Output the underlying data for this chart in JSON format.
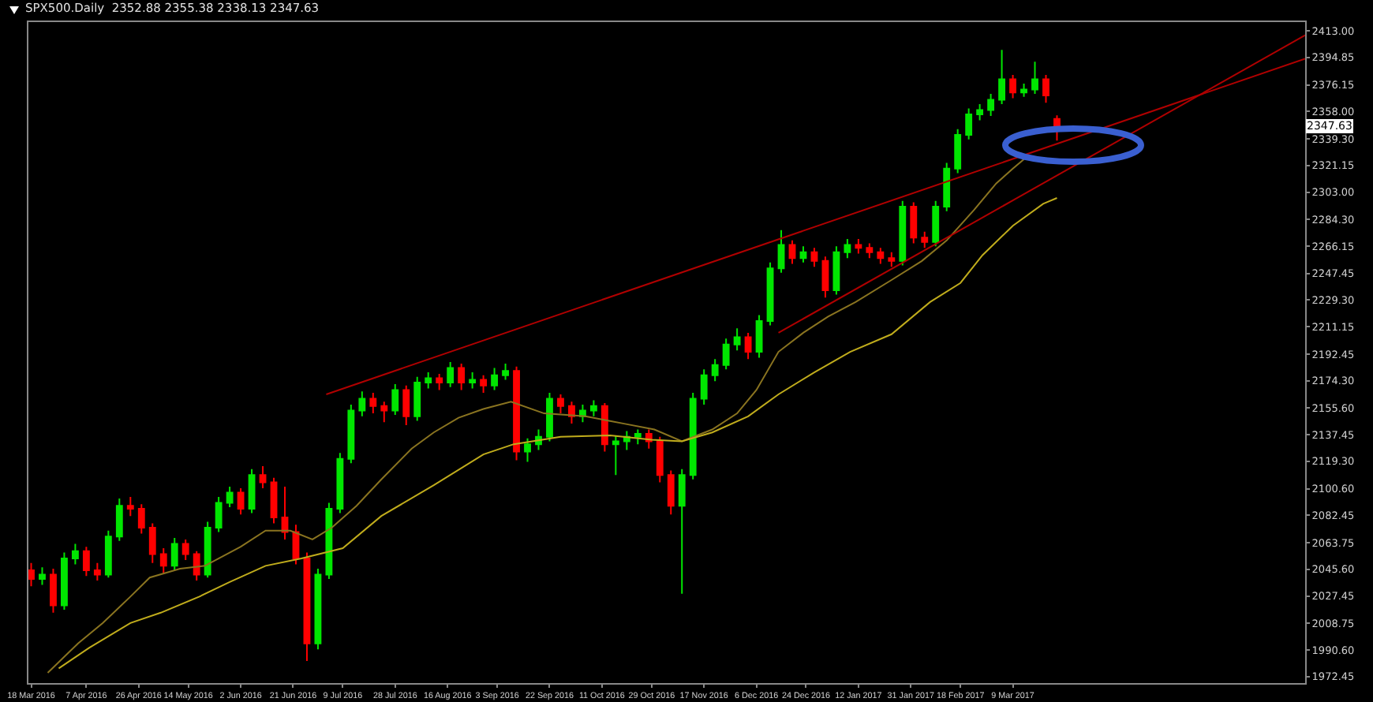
{
  "chart_data": {
    "type": "candlestick",
    "title": "SPX500.Daily  2352.88 2355.38 2338.13 2347.63",
    "x": [
      "2016-03-18",
      "2016-03-22",
      "2016-03-26",
      "2016-03-30",
      "2016-04-03",
      "2016-04-07",
      "2016-04-11",
      "2016-04-15",
      "2016-04-19",
      "2016-04-23",
      "2016-04-27",
      "2016-05-01",
      "2016-05-05",
      "2016-05-09",
      "2016-05-13",
      "2016-05-17",
      "2016-05-21",
      "2016-05-25",
      "2016-05-29",
      "2016-06-02",
      "2016-06-06",
      "2016-06-10",
      "2016-06-14",
      "2016-06-18",
      "2016-06-22",
      "2016-06-26",
      "2016-06-30",
      "2016-07-04",
      "2016-07-08",
      "2016-07-12",
      "2016-07-16",
      "2016-07-20",
      "2016-07-24",
      "2016-07-28",
      "2016-08-01",
      "2016-08-05",
      "2016-08-09",
      "2016-08-13",
      "2016-08-17",
      "2016-08-21",
      "2016-08-25",
      "2016-08-29",
      "2016-09-02",
      "2016-09-06",
      "2016-09-10",
      "2016-09-14",
      "2016-09-18",
      "2016-09-22",
      "2016-09-26",
      "2016-09-30",
      "2016-10-04",
      "2016-10-08",
      "2016-10-12",
      "2016-10-16",
      "2016-10-20",
      "2016-10-24",
      "2016-10-28",
      "2016-11-01",
      "2016-11-05",
      "2016-11-09",
      "2016-11-13",
      "2016-11-17",
      "2016-11-21",
      "2016-11-25",
      "2016-11-29",
      "2016-12-03",
      "2016-12-07",
      "2016-12-11",
      "2016-12-15",
      "2016-12-19",
      "2016-12-23",
      "2016-12-27",
      "2016-12-31",
      "2017-01-04",
      "2017-01-08",
      "2017-01-12",
      "2017-01-16",
      "2017-01-20",
      "2017-01-24",
      "2017-01-28",
      "2017-02-01",
      "2017-02-05",
      "2017-02-09",
      "2017-02-13",
      "2017-02-17",
      "2017-02-21",
      "2017-02-25",
      "2017-03-01",
      "2017-03-05",
      "2017-03-09",
      "2017-03-13",
      "2017-03-17",
      "2017-03-21",
      "2017-03-25"
    ],
    "ohlc": [
      [
        2045,
        2050,
        2034,
        2039
      ],
      [
        2039,
        2047,
        2035,
        2042
      ],
      [
        2042,
        2046,
        2016,
        2021
      ],
      [
        2021,
        2057,
        2018,
        2053
      ],
      [
        2053,
        2063,
        2049,
        2058
      ],
      [
        2058,
        2061,
        2041,
        2045
      ],
      [
        2045,
        2050,
        2038,
        2042
      ],
      [
        2042,
        2072,
        2040,
        2068
      ],
      [
        2068,
        2094,
        2065,
        2089
      ],
      [
        2089,
        2095,
        2082,
        2087
      ],
      [
        2087,
        2090,
        2070,
        2074
      ],
      [
        2074,
        2077,
        2050,
        2056
      ],
      [
        2056,
        2060,
        2043,
        2048
      ],
      [
        2048,
        2067,
        2045,
        2063
      ],
      [
        2063,
        2066,
        2052,
        2056
      ],
      [
        2056,
        2058,
        2038,
        2042
      ],
      [
        2042,
        2078,
        2040,
        2074
      ],
      [
        2074,
        2095,
        2071,
        2091
      ],
      [
        2091,
        2102,
        2088,
        2098
      ],
      [
        2098,
        2101,
        2083,
        2087
      ],
      [
        2087,
        2114,
        2084,
        2110
      ],
      [
        2110,
        2116,
        2101,
        2105
      ],
      [
        2105,
        2108,
        2077,
        2081
      ],
      [
        2081,
        2102,
        2066,
        2071
      ],
      [
        2071,
        2076,
        2049,
        2053
      ],
      [
        2053,
        2057,
        1983,
        1995
      ],
      [
        1995,
        2046,
        1991,
        2042
      ],
      [
        2042,
        2091,
        2039,
        2087
      ],
      [
        2087,
        2125,
        2084,
        2121
      ],
      [
        2121,
        2158,
        2118,
        2154
      ],
      [
        2154,
        2167,
        2150,
        2162
      ],
      [
        2162,
        2166,
        2152,
        2157
      ],
      [
        2157,
        2160,
        2146,
        2154
      ],
      [
        2154,
        2172,
        2151,
        2168
      ],
      [
        2168,
        2171,
        2144,
        2150
      ],
      [
        2150,
        2177,
        2147,
        2173
      ],
      [
        2173,
        2180,
        2169,
        2176
      ],
      [
        2176,
        2179,
        2168,
        2173
      ],
      [
        2173,
        2187,
        2170,
        2183
      ],
      [
        2183,
        2186,
        2168,
        2173
      ],
      [
        2173,
        2180,
        2169,
        2175
      ],
      [
        2175,
        2178,
        2166,
        2171
      ],
      [
        2171,
        2183,
        2168,
        2178
      ],
      [
        2178,
        2186,
        2175,
        2181
      ],
      [
        2181,
        2184,
        2120,
        2126
      ],
      [
        2126,
        2135,
        2119,
        2131
      ],
      [
        2131,
        2141,
        2127,
        2136
      ],
      [
        2136,
        2166,
        2133,
        2162
      ],
      [
        2162,
        2165,
        2152,
        2157
      ],
      [
        2157,
        2160,
        2145,
        2150
      ],
      [
        2150,
        2158,
        2146,
        2154
      ],
      [
        2154,
        2161,
        2150,
        2157
      ],
      [
        2157,
        2159,
        2126,
        2131
      ],
      [
        2131,
        2137,
        2110,
        2133
      ],
      [
        2133,
        2140,
        2127,
        2136
      ],
      [
        2136,
        2141,
        2131,
        2138
      ],
      [
        2138,
        2141,
        2128,
        2133
      ],
      [
        2133,
        2136,
        2105,
        2110
      ],
      [
        2110,
        2113,
        2083,
        2089
      ],
      [
        2089,
        2114,
        2029,
        2110
      ],
      [
        2110,
        2166,
        2107,
        2162
      ],
      [
        2162,
        2182,
        2158,
        2178
      ],
      [
        2178,
        2189,
        2174,
        2185
      ],
      [
        2185,
        2203,
        2182,
        2199
      ],
      [
        2199,
        2210,
        2195,
        2204
      ],
      [
        2204,
        2207,
        2189,
        2194
      ],
      [
        2194,
        2219,
        2190,
        2215
      ],
      [
        2215,
        2255,
        2212,
        2251
      ],
      [
        2251,
        2277,
        2248,
        2267
      ],
      [
        2267,
        2270,
        2254,
        2258
      ],
      [
        2258,
        2266,
        2255,
        2262
      ],
      [
        2262,
        2265,
        2252,
        2256
      ],
      [
        2256,
        2259,
        2231,
        2236
      ],
      [
        2236,
        2266,
        2233,
        2262
      ],
      [
        2262,
        2271,
        2258,
        2267
      ],
      [
        2267,
        2271,
        2261,
        2265
      ],
      [
        2265,
        2268,
        2258,
        2262
      ],
      [
        2262,
        2265,
        2254,
        2258
      ],
      [
        2258,
        2262,
        2252,
        2256
      ],
      [
        2256,
        2297,
        2253,
        2293
      ],
      [
        2293,
        2296,
        2268,
        2272
      ],
      [
        2272,
        2276,
        2265,
        2269
      ],
      [
        2269,
        2297,
        2266,
        2293
      ],
      [
        2293,
        2323,
        2290,
        2319
      ],
      [
        2319,
        2346,
        2316,
        2342
      ],
      [
        2342,
        2360,
        2339,
        2356
      ],
      [
        2356,
        2363,
        2352,
        2359
      ],
      [
        2359,
        2370,
        2355,
        2366
      ],
      [
        2366,
        2400,
        2363,
        2380
      ],
      [
        2380,
        2383,
        2367,
        2371
      ],
      [
        2371,
        2377,
        2368,
        2373
      ],
      [
        2373,
        2392,
        2370,
        2380
      ],
      [
        2380,
        2383,
        2364,
        2369
      ],
      [
        2352.88,
        2355.38,
        2338.13,
        2347.63
      ]
    ],
    "colors": [
      "#ff0000",
      "#00e600",
      "#ff0000",
      "#00e600",
      "#00e600",
      "#ff0000",
      "#ff0000",
      "#00e600",
      "#00e600",
      "#ff0000",
      "#ff0000",
      "#ff0000",
      "#ff0000",
      "#00e600",
      "#ff0000",
      "#ff0000",
      "#00e600",
      "#00e600",
      "#00e600",
      "#ff0000",
      "#00e600",
      "#ff0000",
      "#ff0000",
      "#ff0000",
      "#ff0000",
      "#ff0000",
      "#00e600",
      "#00e600",
      "#00e600",
      "#00e600",
      "#00e600",
      "#ff0000",
      "#ff0000",
      "#00e600",
      "#ff0000",
      "#00e600",
      "#00e600",
      "#ff0000",
      "#00e600",
      "#ff0000",
      "#00e600",
      "#ff0000",
      "#00e600",
      "#00e600",
      "#ff0000",
      "#00e600",
      "#00e600",
      "#00e600",
      "#ff0000",
      "#ff0000",
      "#00e600",
      "#00e600",
      "#ff0000",
      "#00e600",
      "#00e600",
      "#00e600",
      "#ff0000",
      "#ff0000",
      "#ff0000",
      "#00e600",
      "#00e600",
      "#00e600",
      "#00e600",
      "#00e600",
      "#00e600",
      "#ff0000",
      "#00e600",
      "#00e600",
      "#00e600",
      "#ff0000",
      "#00e600",
      "#ff0000",
      "#ff0000",
      "#00e600",
      "#00e600",
      "#ff0000",
      "#ff0000",
      "#ff0000",
      "#ff0000",
      "#00e600",
      "#ff0000",
      "#ff0000",
      "#00e600",
      "#00e600",
      "#00e600",
      "#00e600",
      "#00e600",
      "#00e600",
      "#00e600",
      "#ff0000",
      "#00e600",
      "#00e600",
      "#ff0000",
      "#ff0000"
    ],
    "series": [
      {
        "type": "line",
        "color": "#8a7420",
        "x": [
          "2016-03-24",
          "2016-04-04",
          "2016-04-13",
          "2016-04-23",
          "2016-04-30",
          "2016-05-11",
          "2016-05-20",
          "2016-06-02",
          "2016-06-11",
          "2016-06-20",
          "2016-06-28",
          "2016-07-05",
          "2016-07-14",
          "2016-07-23",
          "2016-08-03",
          "2016-08-11",
          "2016-08-20",
          "2016-08-29",
          "2016-09-08",
          "2016-09-20",
          "2016-10-05",
          "2016-10-19",
          "2016-10-30",
          "2016-11-09",
          "2016-11-20",
          "2016-11-29",
          "2016-12-06",
          "2016-12-14",
          "2016-12-23",
          "2017-01-01",
          "2017-01-11",
          "2017-01-24",
          "2017-02-04",
          "2017-02-13",
          "2017-02-23",
          "2017-03-03",
          "2017-03-09",
          "2017-03-14"
        ],
        "values": [
          1975,
          1995,
          2009,
          2027,
          2040,
          2046,
          2048,
          2061,
          2072,
          2072,
          2066,
          2074,
          2089,
          2107,
          2128,
          2139,
          2149,
          2155,
          2160,
          2152,
          2150,
          2145,
          2141,
          2133,
          2141,
          2152,
          2168,
          2194,
          2207,
          2218,
          2228,
          2243,
          2256,
          2270,
          2291,
          2309,
          2319,
          2327
        ]
      },
      {
        "type": "line",
        "color": "#c0ac1c",
        "x": [
          "2016-03-28",
          "2016-04-08",
          "2016-04-23",
          "2016-05-04",
          "2016-05-18",
          "2016-05-29",
          "2016-06-11",
          "2016-06-24",
          "2016-07-09",
          "2016-07-23",
          "2016-08-11",
          "2016-08-29",
          "2016-09-09",
          "2016-09-26",
          "2016-10-14",
          "2016-10-29",
          "2016-11-09",
          "2016-11-20",
          "2016-12-03",
          "2016-12-14",
          "2016-12-27",
          "2017-01-09",
          "2017-01-24",
          "2017-02-07",
          "2017-02-18",
          "2017-02-26",
          "2017-03-09",
          "2017-03-20",
          "2017-03-25"
        ],
        "values": [
          1978,
          1992,
          2009,
          2016,
          2027,
          2037,
          2048,
          2053,
          2060,
          2082,
          2103,
          2124,
          2131,
          2136,
          2137,
          2134,
          2133,
          2139,
          2150,
          2165,
          2180,
          2194,
          2206,
          2228,
          2241,
          2260,
          2280,
          2295,
          2299
        ]
      },
      {
        "type": "line",
        "color": "#b00000",
        "x": [
          "2016-07-03",
          "2017-06-23"
        ],
        "values": [
          2165,
          2394
        ]
      },
      {
        "type": "line",
        "color": "#b00000",
        "x": [
          "2016-12-14",
          "2017-06-23"
        ],
        "values": [
          2207,
          2410
        ]
      }
    ],
    "annotations": [
      {
        "text": "2347.63",
        "y": 2347.63
      }
    ],
    "xlim": [
      "2016-03-17",
      "2017-06-23"
    ],
    "xticks": [
      {
        "value": "2016-03-18",
        "label": "18 Mar 2016"
      },
      {
        "value": "2016-04-07",
        "label": "7 Apr 2016"
      },
      {
        "value": "2016-04-26",
        "label": "26 Apr 2016"
      },
      {
        "value": "2016-05-14",
        "label": "14 May 2016"
      },
      {
        "value": "2016-06-02",
        "label": "2 Jun 2016"
      },
      {
        "value": "2016-06-21",
        "label": "21 Jun 2016"
      },
      {
        "value": "2016-07-09",
        "label": "9 Jul 2016"
      },
      {
        "value": "2016-07-28",
        "label": "28 Jul 2016"
      },
      {
        "value": "2016-08-16",
        "label": "16 Aug 2016"
      },
      {
        "value": "2016-09-03",
        "label": "3 Sep 2016"
      },
      {
        "value": "2016-09-22",
        "label": "22 Sep 2016"
      },
      {
        "value": "2016-10-11",
        "label": "11 Oct 2016"
      },
      {
        "value": "2016-10-29",
        "label": "29 Oct 2016"
      },
      {
        "value": "2016-11-17",
        "label": "17 Nov 2016"
      },
      {
        "value": "2016-12-06",
        "label": "6 Dec 2016"
      },
      {
        "value": "2016-12-24",
        "label": "24 Dec 2016"
      },
      {
        "value": "2017-01-12",
        "label": "12 Jan 2017"
      },
      {
        "value": "2017-01-31",
        "label": "31 Jan 2017"
      },
      {
        "value": "2017-02-18",
        "label": "18 Feb 2017"
      },
      {
        "value": "2017-03-09",
        "label": "9 Mar 2017"
      }
    ],
    "ylim": [
      1968,
      2419
    ],
    "yticks": [
      {
        "value": 1972.45,
        "label": "1972.45"
      },
      {
        "value": 1990.6,
        "label": "1990.60"
      },
      {
        "value": 2008.75,
        "label": "2008.75"
      },
      {
        "value": 2027.45,
        "label": "2027.45"
      },
      {
        "value": 2045.6,
        "label": "2045.60"
      },
      {
        "value": 2063.75,
        "label": "2063.75"
      },
      {
        "value": 2082.45,
        "label": "2082.45"
      },
      {
        "value": 2100.6,
        "label": "2100.60"
      },
      {
        "value": 2119.3,
        "label": "2119.30"
      },
      {
        "value": 2137.45,
        "label": "2137.45"
      },
      {
        "value": 2155.6,
        "label": "2155.60"
      },
      {
        "value": 2174.3,
        "label": "2174.30"
      },
      {
        "value": 2192.45,
        "label": "2192.45"
      },
      {
        "value": 2211.15,
        "label": "2211.15"
      },
      {
        "value": 2229.3,
        "label": "2229.30"
      },
      {
        "value": 2247.45,
        "label": "2247.45"
      },
      {
        "value": 2266.15,
        "label": "2266.15"
      },
      {
        "value": 2284.3,
        "label": "2284.30"
      },
      {
        "value": 2303,
        "label": "2303.00"
      },
      {
        "value": 2321.15,
        "label": "2321.15"
      },
      {
        "value": 2339.3,
        "label": "2339.30"
      },
      {
        "value": 2358,
        "label": "2358.00"
      },
      {
        "value": 2376.15,
        "label": "2376.15"
      },
      {
        "value": 2394.85,
        "label": "2394.85"
      },
      {
        "value": 2413,
        "label": "2413.00"
      }
    ],
    "grid": false,
    "marker": "none"
  }
}
